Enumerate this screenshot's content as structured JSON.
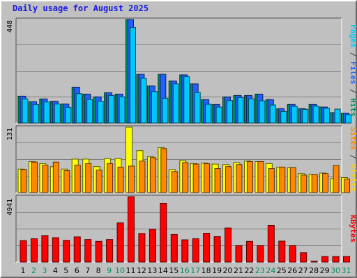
{
  "title": "Daily usage for August 2025",
  "colors": {
    "pages": "#00c8ff",
    "files": "#2060ff",
    "hits": "#009060",
    "sites": "#ff8800",
    "visits": "#ffff00",
    "kbytes": "#ff0000",
    "weekday_text": "#000000",
    "weekend_text": "#009060",
    "title": "#1a1ae0"
  },
  "legends": {
    "top": [
      {
        "text": "Pages",
        "color": "#00c8ff"
      },
      {
        "text": " / ",
        "color": "#404040"
      },
      {
        "text": "Files",
        "color": "#2060ff"
      },
      {
        "text": " / ",
        "color": "#404040"
      },
      {
        "text": "Hits",
        "color": "#009060"
      }
    ],
    "middle": [
      {
        "text": "Sites",
        "color": "#ff8800"
      },
      {
        "text": " / ",
        "color": "#404040"
      },
      {
        "text": "Visits",
        "color": "#ffd000"
      }
    ],
    "bottom": [
      {
        "text": "KBytes",
        "color": "#ff0000"
      }
    ]
  },
  "chart_data": {
    "type": "bar",
    "title": "Daily usage for August 2025",
    "categories": [
      "1",
      "2",
      "3",
      "4",
      "5",
      "6",
      "7",
      "8",
      "9",
      "10",
      "11",
      "12",
      "13",
      "14",
      "15",
      "16",
      "17",
      "18",
      "19",
      "20",
      "21",
      "22",
      "23",
      "24",
      "25",
      "26",
      "27",
      "28",
      "29",
      "30",
      "31"
    ],
    "weekend_days": [
      "2",
      "3",
      "9",
      "10",
      "16",
      "17",
      "23",
      "24",
      "30",
      "31"
    ],
    "panels": [
      {
        "name": "hits-files-pages",
        "ymax_label": "448",
        "ylim": [
          0,
          448
        ],
        "series": [
          {
            "name": "Hits",
            "values": [
              116,
              92,
              104,
              94,
              82,
              155,
              125,
              113,
              131,
              125,
              448,
              211,
              160,
              211,
              182,
              208,
              169,
              101,
              80,
              113,
              119,
              119,
              125,
              101,
              62,
              80,
              62,
              80,
              69,
              45,
              42
            ]
          },
          {
            "name": "Files",
            "values": [
              116,
              92,
              104,
              94,
              82,
              155,
              125,
              113,
              131,
              125,
              448,
              211,
              160,
              211,
              182,
              208,
              169,
              101,
              80,
              113,
              119,
              119,
              125,
              101,
              62,
              80,
              62,
              80,
              69,
              45,
              42
            ]
          },
          {
            "name": "Pages",
            "values": [
              104,
              80,
              91,
              82,
              68,
              127,
              102,
              94,
              119,
              113,
              413,
              194,
              136,
              107,
              169,
              200,
              132,
              81,
              69,
              97,
              110,
              105,
              96,
              78,
              50,
              72,
              59,
              73,
              64,
              60,
              36
            ]
          }
        ]
      },
      {
        "name": "visits-sites",
        "ymax_label": "131",
        "ylim": [
          0,
          131
        ],
        "series": [
          {
            "name": "Visits",
            "values": [
              47,
              62,
              58,
              52,
              47,
              67,
              67,
              52,
              68,
              68,
              131,
              84,
              72,
              90,
              46,
              64,
              58,
              59,
              57,
              56,
              60,
              63,
              62,
              58,
              51,
              50,
              38,
              36,
              39,
              28,
              30
            ]
          },
          {
            "name": "Sites",
            "values": [
              46,
              61,
              55,
              61,
              44,
              55,
              58,
              45,
              58,
              51,
              53,
              63,
              70,
              88,
              42,
              60,
              57,
              58,
              48,
              52,
              56,
              62,
              62,
              48,
              51,
              50,
              35,
              36,
              38,
              54,
              27
            ]
          }
        ]
      },
      {
        "name": "kbytes",
        "ymax_label": "4941",
        "ylim": [
          0,
          4941
        ],
        "series": [
          {
            "name": "KBytes",
            "values": [
              1620,
              1760,
              2000,
              1840,
              1640,
              1900,
              1700,
              1560,
              1700,
              2960,
              4941,
              2160,
              2480,
              4441,
              2080,
              1680,
              1760,
              2180,
              1920,
              2570,
              1240,
              1560,
              1240,
              2760,
              1580,
              1240,
              700,
              60,
              420,
              420,
              420
            ]
          }
        ]
      }
    ]
  }
}
